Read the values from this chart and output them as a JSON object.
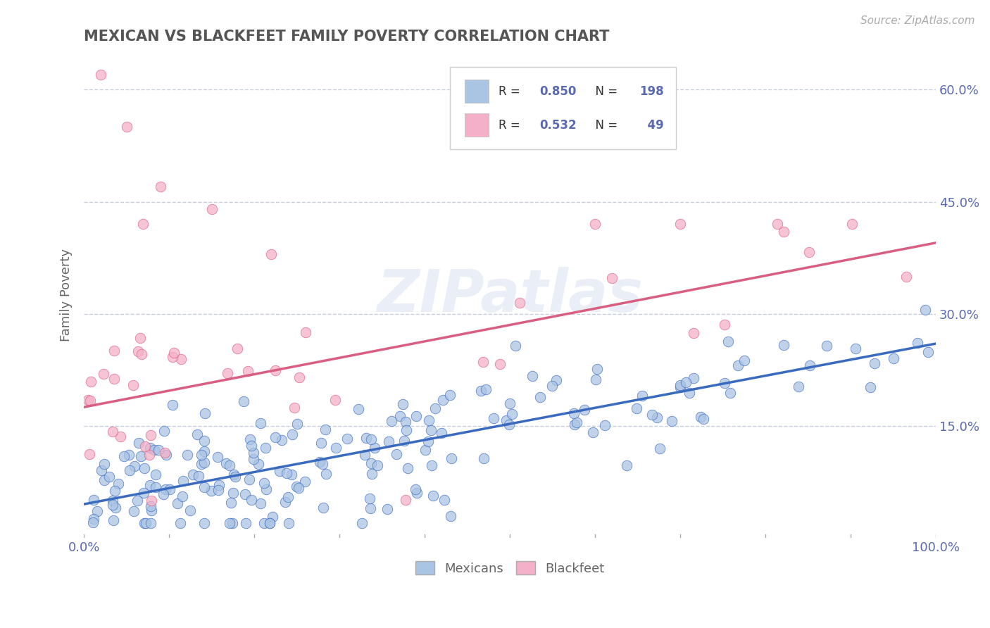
{
  "title": "MEXICAN VS BLACKFEET FAMILY POVERTY CORRELATION CHART",
  "source": "Source: ZipAtlas.com",
  "ylabel": "Family Poverty",
  "mexican_R": 0.85,
  "mexican_N": 198,
  "blackfeet_R": 0.532,
  "blackfeet_N": 49,
  "mexican_color": "#aac4e4",
  "blackfeet_color": "#f4b0c8",
  "mexican_line_color": "#3a6bbf",
  "blackfeet_line_color": "#d95f82",
  "axis_color": "#5a6ab0",
  "watermark": "ZIPatlas",
  "background_color": "#ffffff",
  "grid_color": "#c8cce0",
  "xlim": [
    0.0,
    1.0
  ],
  "ylim": [
    0.0,
    0.65
  ],
  "ytick_positions": [
    0.15,
    0.3,
    0.45,
    0.6
  ],
  "ytick_labels": [
    "15.0%",
    "30.0%",
    "45.0%",
    "60.0%"
  ],
  "xtick_positions": [
    0.0,
    0.1,
    0.2,
    0.3,
    0.4,
    0.5,
    0.6,
    0.7,
    0.8,
    0.9,
    1.0
  ],
  "xticklabels": [
    "0.0%",
    "",
    "",
    "",
    "",
    "",
    "",
    "",
    "",
    "",
    "100.0%"
  ],
  "mex_line_x0": 0.0,
  "mex_line_y0": 0.045,
  "mex_line_x1": 1.0,
  "mex_line_y1": 0.26,
  "bf_line_x0": 0.0,
  "bf_line_y0": 0.175,
  "bf_line_x1": 1.0,
  "bf_line_y1": 0.395
}
